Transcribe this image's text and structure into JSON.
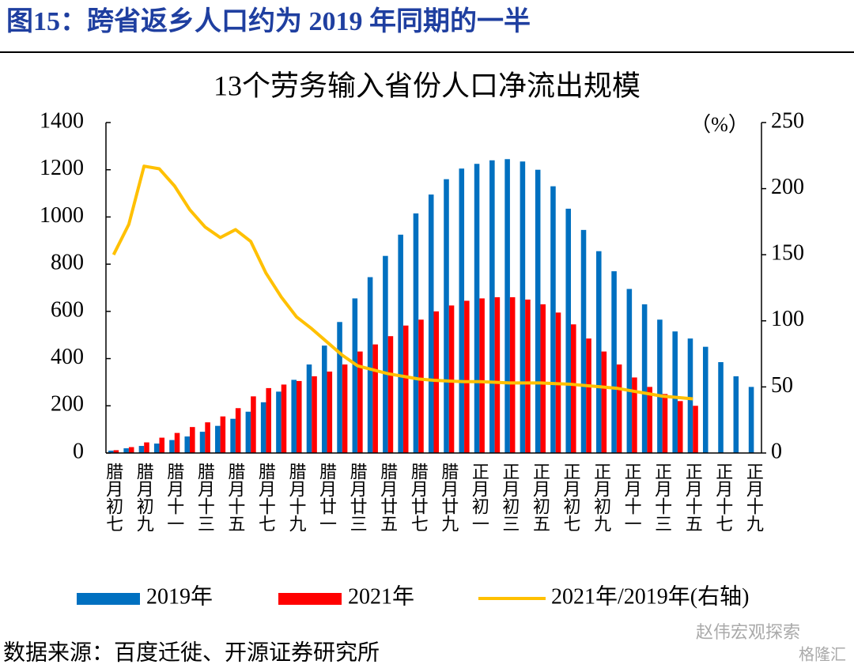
{
  "chart_data": {
    "type": "bar",
    "figure_title": "图15：跨省返乡人口约为 2019 年同期的一半",
    "title": "13个劳务输入省份人口净流出规模",
    "y2_unit": "（%）",
    "source": "数据来源：百度迁徙、开源证券研究所",
    "watermark": [
      "赵伟宏观探索",
      "格隆汇"
    ],
    "categories": [
      "腊月初七",
      null,
      "腊月初九",
      null,
      "腊月十一",
      null,
      "腊月十三",
      null,
      "腊月十五",
      null,
      "腊月十七",
      null,
      "腊月十九",
      null,
      "腊月廿一",
      null,
      "腊月廿三",
      null,
      "腊月廿五",
      null,
      "腊月廿七",
      null,
      "腊月廿九",
      null,
      "正月初一",
      null,
      "正月初三",
      null,
      "正月初五",
      null,
      "正月初七",
      null,
      "正月初九",
      null,
      "正月十一",
      null,
      "正月十三",
      null,
      "正月十五",
      null,
      "正月十七",
      null,
      "正月十九"
    ],
    "series": [
      {
        "name": "2019年",
        "type": "bar",
        "color": "#0070c0",
        "values": [
          10,
          20,
          30,
          40,
          55,
          70,
          90,
          115,
          145,
          175,
          215,
          260,
          310,
          375,
          455,
          555,
          655,
          745,
          835,
          925,
          1015,
          1095,
          1160,
          1205,
          1225,
          1240,
          1245,
          1235,
          1200,
          1130,
          1035,
          945,
          855,
          770,
          695,
          630,
          565,
          515,
          485,
          450,
          385,
          325,
          280
        ]
      },
      {
        "name": "2021年",
        "type": "bar",
        "color": "#ff0000",
        "values": [
          12,
          25,
          45,
          65,
          85,
          110,
          130,
          155,
          190,
          240,
          275,
          290,
          305,
          325,
          345,
          375,
          430,
          460,
          495,
          540,
          565,
          600,
          625,
          645,
          655,
          660,
          660,
          650,
          630,
          595,
          545,
          485,
          430,
          375,
          320,
          280,
          250,
          220,
          200,
          null,
          null,
          null,
          null
        ]
      },
      {
        "name": "2021年/2019年(右轴)",
        "type": "line",
        "axis": "y2",
        "color": "#ffc000",
        "values": [
          150,
          173,
          217,
          215,
          202,
          184,
          171,
          163,
          169,
          160,
          136,
          118,
          103,
          94,
          84,
          74,
          66,
          63,
          60,
          58,
          56,
          55,
          54.4,
          54,
          54,
          53.5,
          53,
          53,
          53,
          52.5,
          52,
          51,
          50,
          49,
          47,
          45,
          43,
          42,
          41,
          null,
          null,
          null,
          null
        ]
      }
    ],
    "ylim": [
      0,
      1400
    ],
    "yticks": [
      0,
      200,
      400,
      600,
      800,
      1000,
      1200,
      1400
    ],
    "y2lim": [
      0,
      250
    ],
    "y2ticks": [
      0,
      50,
      100,
      150,
      200,
      250
    ],
    "legend": "bottom"
  }
}
